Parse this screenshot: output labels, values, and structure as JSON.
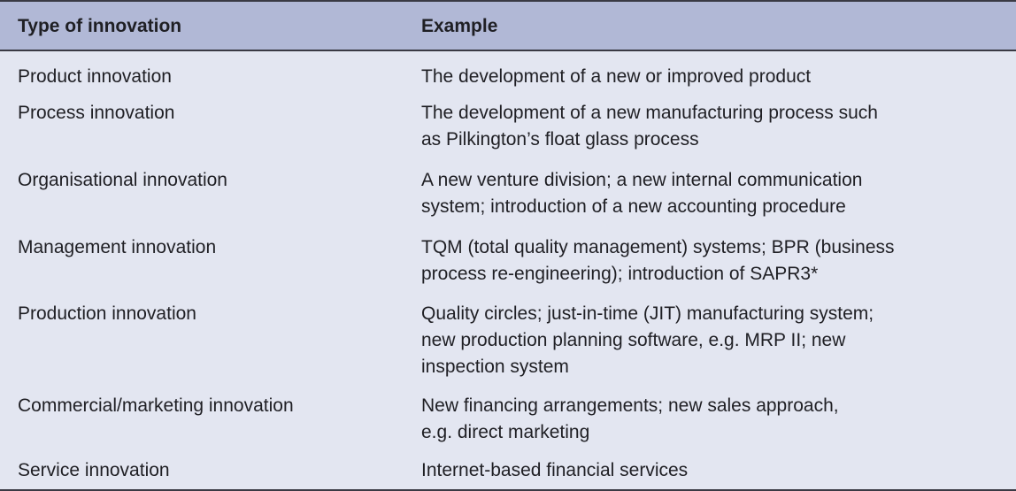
{
  "table": {
    "headers": [
      "Type of innovation",
      "Example"
    ],
    "rows": [
      {
        "type": "Product innovation",
        "example": "The development of a new or improved product"
      },
      {
        "type": "Process innovation",
        "example": "The development of a new manufacturing process such\nas Pilkington’s float glass process"
      },
      {
        "type": "Organisational innovation",
        "example": "A new venture division; a new internal communication\nsystem; introduction of a new accounting procedure"
      },
      {
        "type": "Management innovation",
        "example": "TQM (total quality management) systems; BPR (business\nprocess re-engineering); introduction of SAPR3*"
      },
      {
        "type": "Production innovation",
        "example": "Quality circles; just-in-time (JIT) manufacturing system;\nnew production planning software, e.g. MRP II; new\ninspection system"
      },
      {
        "type": "Commercial/marketing innovation",
        "example": "New financing arrangements; new sales approach,\ne.g. direct marketing"
      },
      {
        "type": "Service innovation",
        "example": "Internet-based financial services"
      }
    ]
  }
}
